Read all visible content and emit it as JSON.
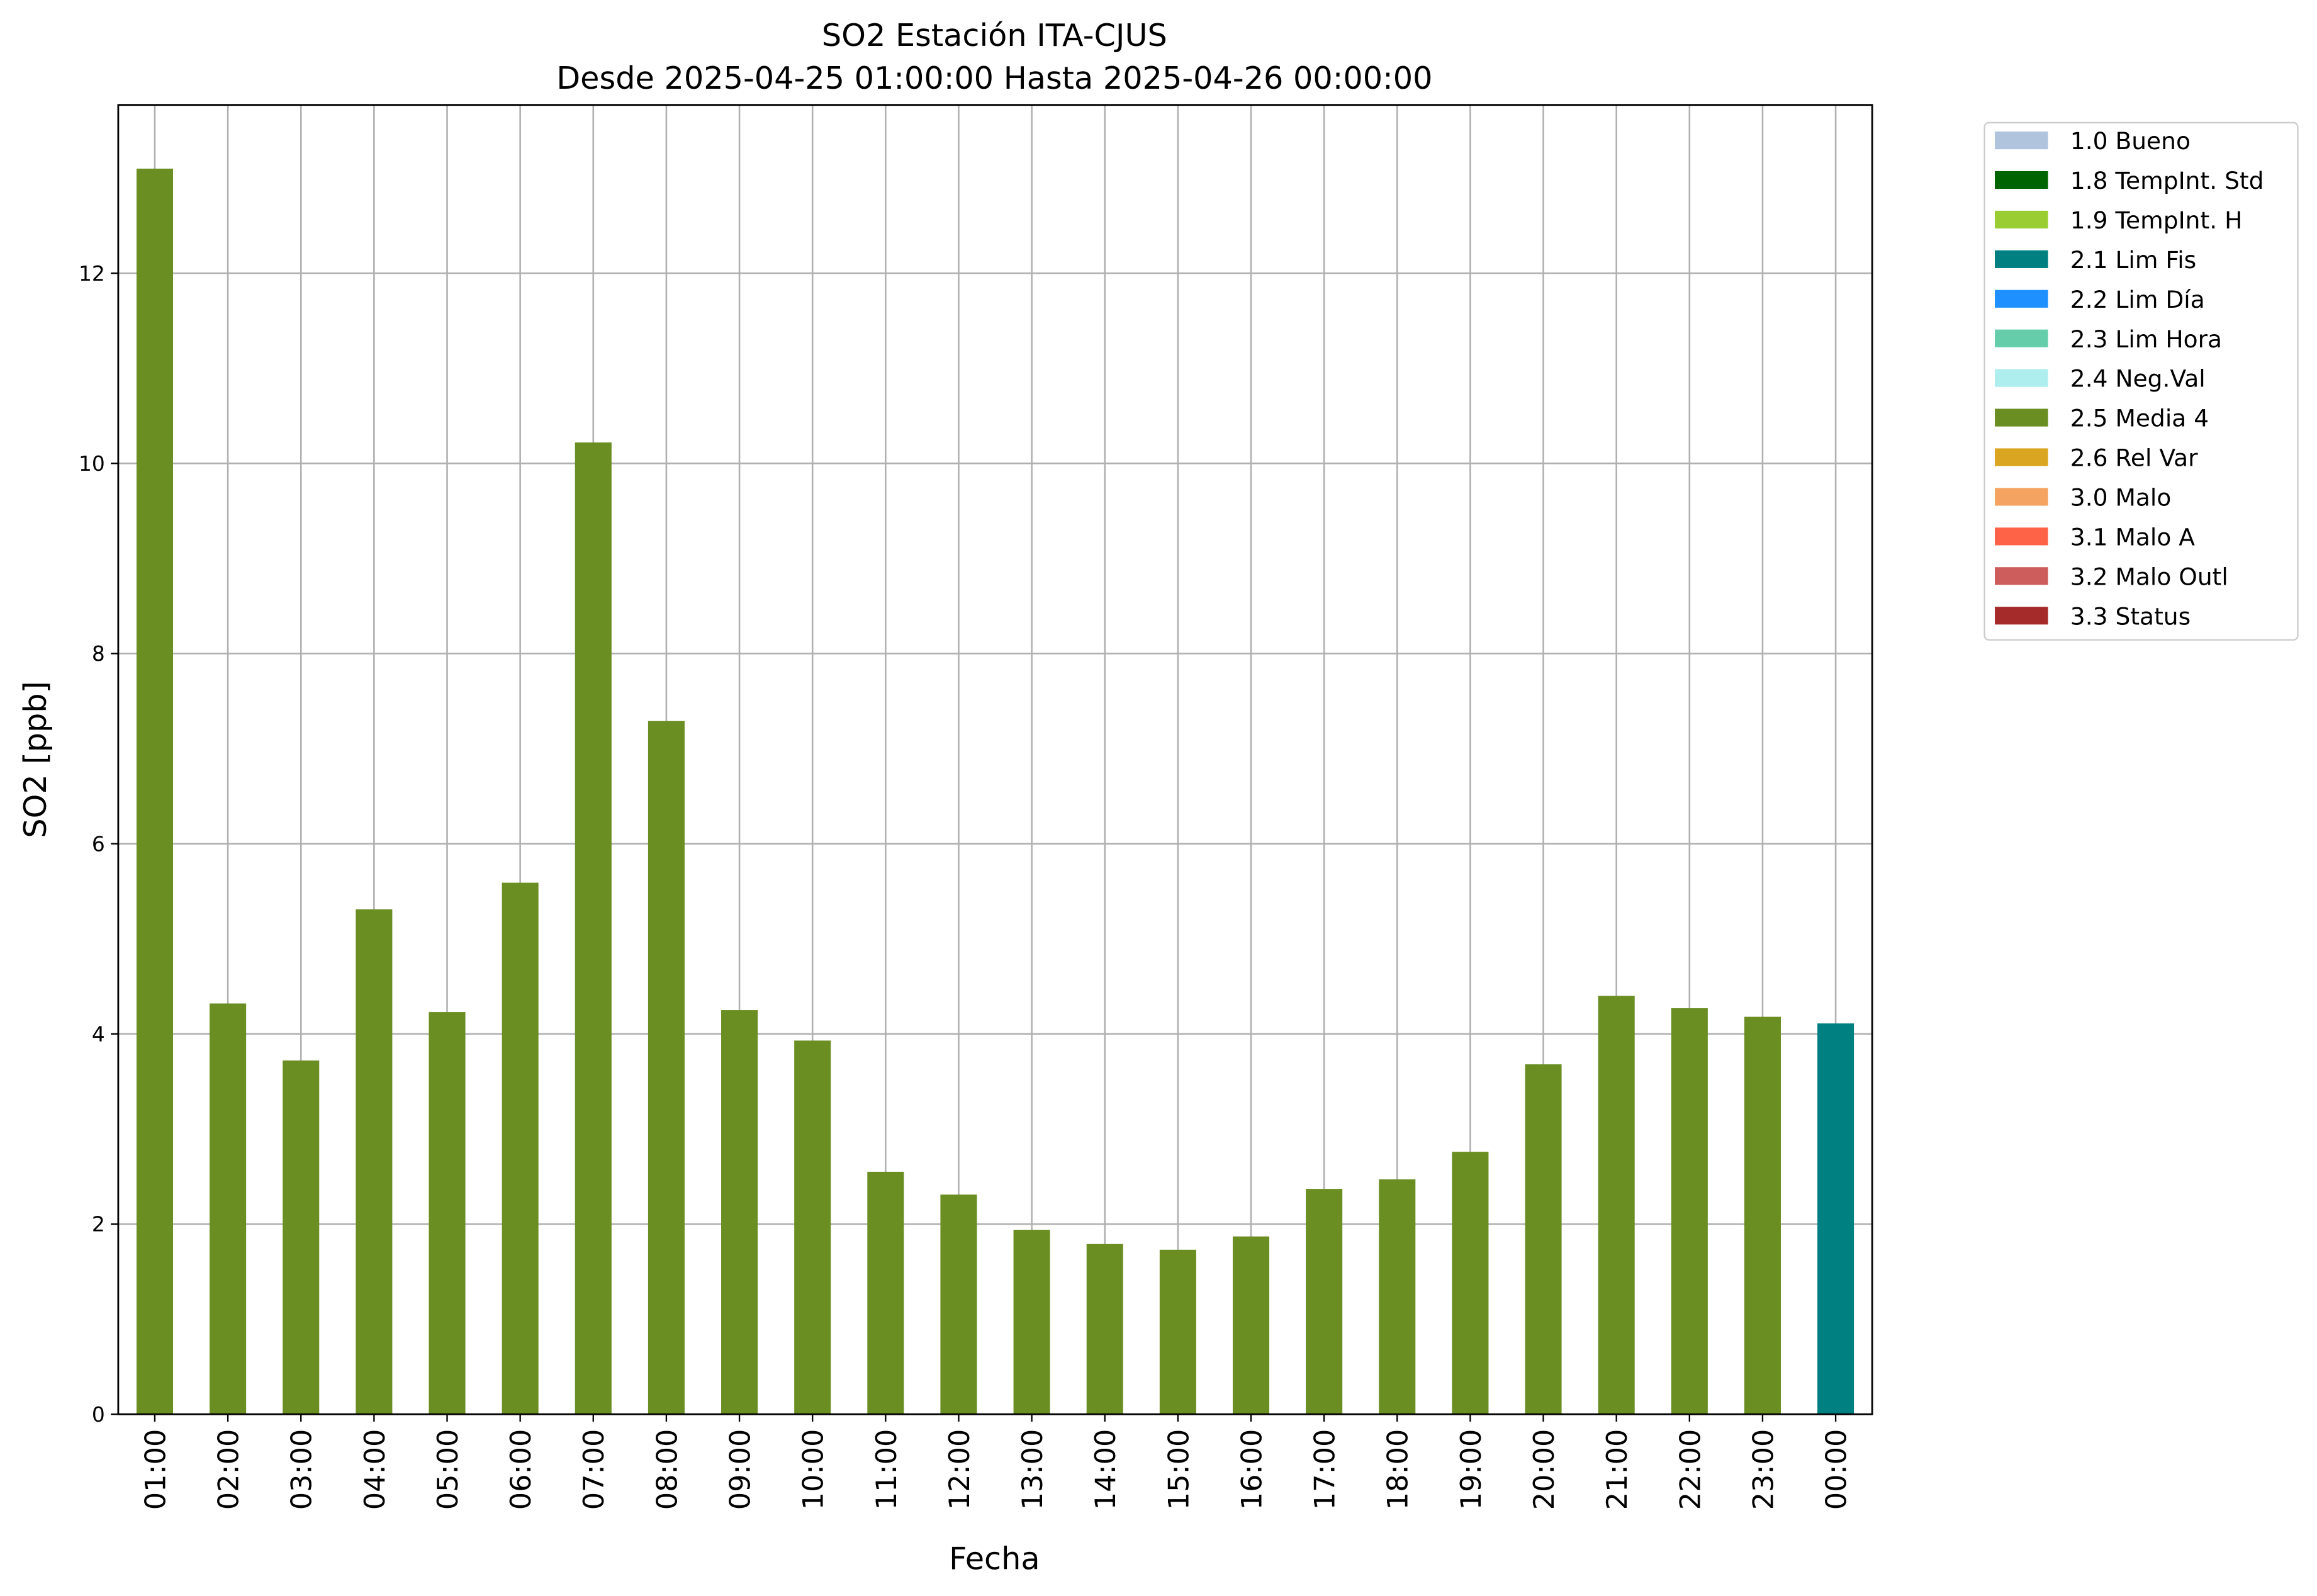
{
  "chart_data": {
    "type": "stacked_bar",
    "title": "SO2 Estación ITA-CJUS",
    "subtitle": "Desde 2025-04-25 01:00:00 Hasta 2025-04-26 00:00:00",
    "x_label": "Fecha",
    "y_label": "SO2 [ppb]",
    "categories": [
      "01:00",
      "02:00",
      "03:00",
      "04:00",
      "05:00",
      "06:00",
      "07:00",
      "08:00",
      "09:00",
      "10:00",
      "11:00",
      "12:00",
      "13:00",
      "14:00",
      "15:00",
      "16:00",
      "17:00",
      "18:00",
      "19:00",
      "20:00",
      "21:00",
      "22:00",
      "23:00",
      "00:00"
    ],
    "series": [
      {
        "name": "1.0 Bueno",
        "color": "#b0c4de",
        "values": [
          null,
          null,
          null,
          null,
          null,
          null,
          null,
          null,
          null,
          null,
          null,
          null,
          null,
          null,
          null,
          null,
          null,
          null,
          null,
          null,
          null,
          null,
          null,
          null
        ]
      },
      {
        "name": "1.8 TempInt. Std",
        "color": "#006400",
        "values": [
          null,
          null,
          null,
          null,
          null,
          null,
          null,
          null,
          null,
          null,
          null,
          null,
          null,
          null,
          null,
          null,
          null,
          null,
          null,
          null,
          null,
          null,
          null,
          null
        ]
      },
      {
        "name": "1.9 TempInt. H",
        "color": "#9acd32",
        "values": [
          null,
          null,
          null,
          null,
          null,
          null,
          null,
          null,
          null,
          null,
          null,
          null,
          null,
          null,
          null,
          null,
          null,
          null,
          null,
          null,
          null,
          null,
          null,
          null
        ]
      },
      {
        "name": "2.1 Lim Fis",
        "color": "#008080",
        "values": [
          null,
          null,
          null,
          null,
          null,
          null,
          null,
          null,
          null,
          null,
          null,
          null,
          null,
          null,
          null,
          null,
          null,
          null,
          null,
          null,
          null,
          null,
          null,
          4.11
        ]
      },
      {
        "name": "2.2 Lim Día",
        "color": "#1e90ff",
        "values": [
          null,
          null,
          null,
          null,
          null,
          null,
          null,
          null,
          null,
          null,
          null,
          null,
          null,
          null,
          null,
          null,
          null,
          null,
          null,
          null,
          null,
          null,
          null,
          null
        ]
      },
      {
        "name": "2.3 Lim Hora",
        "color": "#66cdaa",
        "values": [
          null,
          null,
          null,
          null,
          null,
          null,
          null,
          null,
          null,
          null,
          null,
          null,
          null,
          null,
          null,
          null,
          null,
          null,
          null,
          null,
          null,
          null,
          null,
          null
        ]
      },
      {
        "name": "2.4 Neg.Val",
        "color": "#afeeee",
        "values": [
          null,
          null,
          null,
          null,
          null,
          null,
          null,
          null,
          null,
          null,
          null,
          null,
          null,
          null,
          null,
          null,
          null,
          null,
          null,
          null,
          null,
          null,
          null,
          null
        ]
      },
      {
        "name": "2.5 Media 4",
        "color": "#6b8e23",
        "values": [
          13.1,
          4.32,
          3.72,
          5.31,
          4.23,
          5.59,
          10.22,
          7.29,
          4.25,
          3.93,
          2.55,
          2.31,
          1.94,
          1.79,
          1.73,
          1.87,
          2.37,
          2.47,
          2.76,
          3.68,
          4.4,
          4.27,
          4.18,
          null
        ]
      },
      {
        "name": "2.6 Rel Var",
        "color": "#daa520",
        "values": [
          null,
          null,
          null,
          null,
          null,
          null,
          null,
          null,
          null,
          null,
          null,
          null,
          null,
          null,
          null,
          null,
          null,
          null,
          null,
          null,
          null,
          null,
          null,
          null
        ]
      },
      {
        "name": "3.0 Malo",
        "color": "#f4a460",
        "values": [
          null,
          null,
          null,
          null,
          null,
          null,
          null,
          null,
          null,
          null,
          null,
          null,
          null,
          null,
          null,
          null,
          null,
          null,
          null,
          null,
          null,
          null,
          null,
          null
        ]
      },
      {
        "name": "3.1 Malo A",
        "color": "#ff6347",
        "values": [
          null,
          null,
          null,
          null,
          null,
          null,
          null,
          null,
          null,
          null,
          null,
          null,
          null,
          null,
          null,
          null,
          null,
          null,
          null,
          null,
          null,
          null,
          null,
          null
        ]
      },
      {
        "name": "3.2 Malo Outl",
        "color": "#cd5c5c",
        "values": [
          null,
          null,
          null,
          null,
          null,
          null,
          null,
          null,
          null,
          null,
          null,
          null,
          null,
          null,
          null,
          null,
          null,
          null,
          null,
          null,
          null,
          null,
          null,
          null
        ]
      },
      {
        "name": "3.3 Status",
        "color": "#a52a2a",
        "values": [
          null,
          null,
          null,
          null,
          null,
          null,
          null,
          null,
          null,
          null,
          null,
          null,
          null,
          null,
          null,
          null,
          null,
          null,
          null,
          null,
          null,
          null,
          null,
          null
        ]
      }
    ],
    "ylim": [
      0,
      13.77
    ],
    "yticks": [
      0,
      2,
      4,
      6,
      8,
      10,
      12
    ],
    "grid": true,
    "legend": "outside-right"
  }
}
